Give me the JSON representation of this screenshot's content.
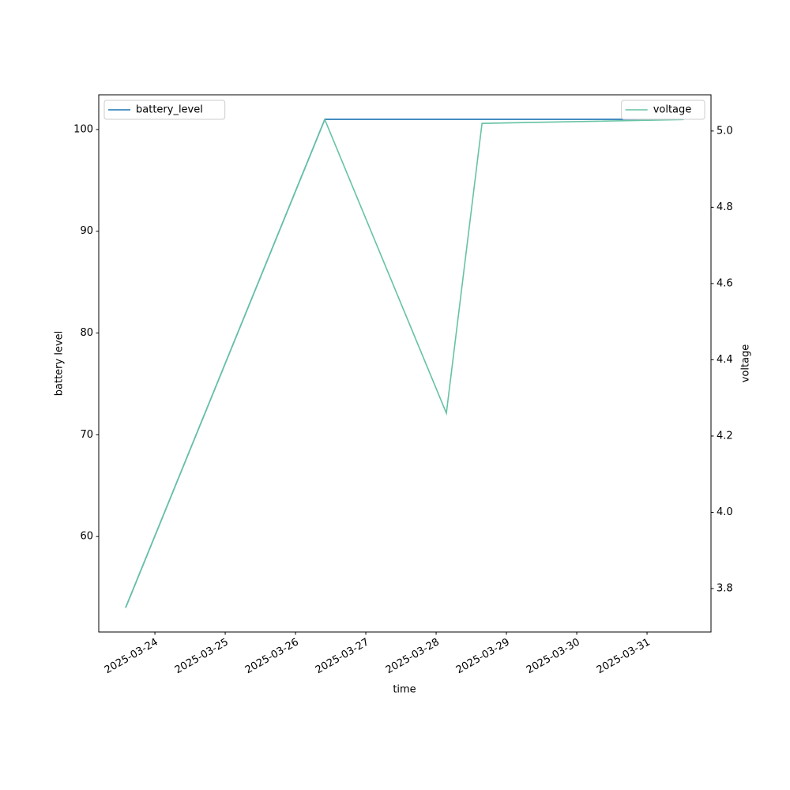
{
  "chart_data": {
    "type": "line",
    "x_label": "time",
    "y_label": "battery level",
    "y2_label": "voltage",
    "x": [
      "2025-03-23 14:00",
      "2025-03-26 10:00",
      "2025-03-28 03:30",
      "2025-03-28 15:40",
      "2025-03-31 12:30"
    ],
    "series": [
      {
        "name": "battery_level",
        "color": "#1f77b4",
        "values": [
          53,
          101,
          101,
          101,
          101
        ],
        "legend": "upper left"
      },
      {
        "name": "voltage",
        "color": "#66c2a5",
        "axis": "y2",
        "values": [
          3.75,
          5.03,
          4.26,
          5.02,
          5.03
        ],
        "legend": "upper right"
      }
    ],
    "xlim": [
      "2025-03-23 04:50",
      "2025-03-31 21:50"
    ],
    "xticks": [
      "2025-03-24",
      "2025-03-25",
      "2025-03-26",
      "2025-03-27",
      "2025-03-28",
      "2025-03-29",
      "2025-03-30",
      "2025-03-31"
    ],
    "ylim": [
      50.62,
      103.41
    ],
    "yticks": [
      60,
      70,
      80,
      90,
      100
    ],
    "y2lim": [
      3.686,
      5.095
    ],
    "y2ticks": [
      3.8,
      {
        "value": 4,
        "label": "4.0"
      },
      4.2,
      4.4,
      4.6,
      4.8,
      {
        "value": 5,
        "label": "5.0"
      }
    ]
  }
}
